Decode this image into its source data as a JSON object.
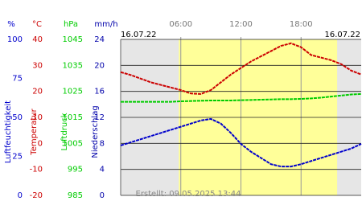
{
  "chart_data": {
    "type": "line",
    "x": [
      0,
      1,
      2,
      3,
      4,
      5,
      6,
      7,
      8,
      9,
      10,
      11,
      12,
      13,
      14,
      15,
      16,
      17,
      18,
      19,
      20,
      21,
      22,
      23,
      24
    ],
    "xlim": [
      0,
      24
    ],
    "xticks": [
      {
        "value": 6,
        "label": "06:00"
      },
      {
        "value": 12,
        "label": "12:00"
      },
      {
        "value": 18,
        "label": "18:00"
      }
    ],
    "start_label": "16.07.22",
    "end_label": "16.07.22",
    "daylight": [
      5.8,
      21.6
    ],
    "footer": "Erstellt: 09.05.2025 13:44",
    "axes": [
      {
        "unit": "%",
        "label": "Luftfeuchtigkeit",
        "color": "#0000cc",
        "ylim": [
          0,
          100
        ],
        "yticks": [
          0,
          25,
          50,
          75,
          100
        ],
        "values": [
          32,
          34,
          36,
          38,
          40,
          42,
          44,
          46,
          48,
          49,
          46,
          40,
          33,
          28,
          24,
          20,
          18.5,
          18.5,
          20,
          22,
          24,
          26,
          28,
          30,
          33
        ]
      },
      {
        "unit": "°C",
        "label": "Temperatur",
        "color": "#cc0000",
        "ylim": [
          -20,
          40
        ],
        "yticks": [
          -20,
          -10,
          0,
          10,
          20,
          30,
          40
        ],
        "values": [
          27.4,
          26.3,
          24.9,
          23.5,
          22.5,
          21.5,
          20.5,
          19.2,
          19.0,
          20.5,
          23.5,
          26.5,
          29.0,
          31.5,
          33.5,
          35.5,
          37.5,
          38.5,
          37.0,
          34.0,
          33.0,
          32.0,
          30.5,
          28.0,
          26.5
        ]
      },
      {
        "unit": "hPa",
        "label": "Luftdruck",
        "color": "#00cc00",
        "ylim": [
          985,
          1045
        ],
        "yticks": [
          985,
          995,
          1005,
          1015,
          1025,
          1035,
          1045
        ],
        "values": [
          1021,
          1021,
          1021,
          1021,
          1021,
          1021,
          1021.2,
          1021.3,
          1021.4,
          1021.5,
          1021.5,
          1021.5,
          1021.6,
          1021.7,
          1021.8,
          1021.9,
          1022,
          1022,
          1022.1,
          1022.3,
          1022.6,
          1023,
          1023.4,
          1023.8,
          1024
        ]
      },
      {
        "unit": "mm/h",
        "label": "Niederschlag",
        "color": "#0000aa",
        "ylim": [
          0,
          24
        ],
        "yticks": [
          0,
          4,
          8,
          12,
          16,
          20,
          24
        ]
      }
    ]
  }
}
